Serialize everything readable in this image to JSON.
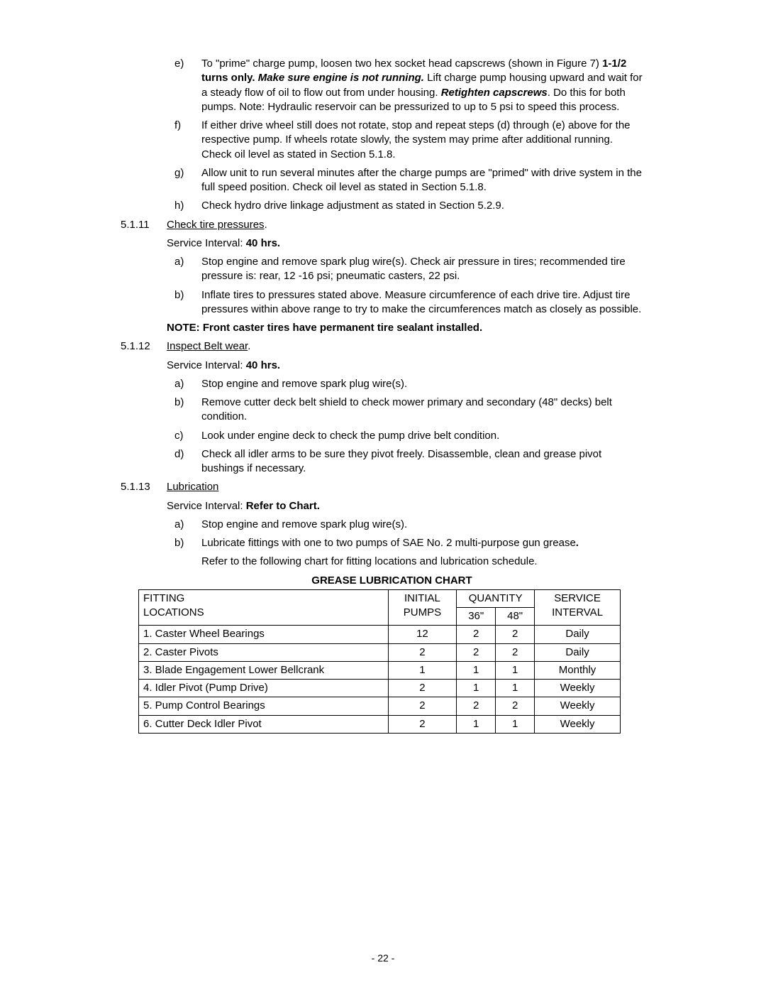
{
  "items_e": {
    "letter": "e)",
    "pre": "To \"prime\" charge pump, loosen two hex socket head capscrews (shown in Figure 7) ",
    "bold1": "1-1/2 turns only.  ",
    "bolditalic1": "Make sure engine is not running.",
    "mid1": "  Lift charge pump housing upward and wait for a steady flow of oil to flow out from under housing.  ",
    "bolditalic2": "Retighten capscrews",
    "tail": ".  Do this for both pumps.  Note:  Hydraulic reservoir can be pressurized to up to 5 psi to speed this process."
  },
  "items_f": {
    "letter": "f)",
    "text": "If either drive wheel still does not rotate, stop and repeat steps (d) through (e) above for the respective pump.  If wheels rotate slowly, the system may prime after additional running. Check oil level as stated in Section 5.1.8."
  },
  "items_g": {
    "letter": "g)",
    "text": "Allow unit to run several minutes after the charge pumps are \"primed\" with drive system in the full speed position.  Check oil level as stated in Section 5.1.8."
  },
  "items_h": {
    "letter": "h)",
    "text": "Check hydro drive linkage adjustment as stated in Section 5.2.9."
  },
  "s5111": {
    "num": "5.1.11",
    "title": "Check tire pressures",
    "interval_label": "Service Interval:  ",
    "interval_val": "40 hrs.",
    "a": {
      "letter": "a)",
      "text": "Stop engine and remove spark plug wire(s).  Check air pressure in tires; recommended tire pressure is:  rear, 12 -16 psi; pneumatic casters, 22 psi."
    },
    "b": {
      "letter": "b)",
      "text": "Inflate tires to pressures stated above.  Measure circumference of each drive tire.  Adjust tire pressures within above range to try to make the circumferences match as closely as possible."
    },
    "note": "NOTE:  Front caster tires have permanent tire sealant installed."
  },
  "s5112": {
    "num": "5.1.12",
    "title": "Inspect Belt wear",
    "interval_label": "Service Interval:  ",
    "interval_val": "40 hrs.",
    "a": {
      "letter": "a)",
      "text": "Stop engine and remove spark plug wire(s)."
    },
    "b": {
      "letter": "b)",
      "text": "Remove cutter deck belt shield to check mower primary and secondary (48\" decks) belt condition."
    },
    "c": {
      "letter": "c)",
      "text": "Look under engine deck to check the pump drive belt condition."
    },
    "d": {
      "letter": "d)",
      "text": "Check all idler arms to be sure they pivot freely.  Disassemble, clean and grease pivot bushings if necessary."
    }
  },
  "s5113": {
    "num": "5.1.13",
    "title": "Lubrication",
    "interval_label": "Service Interval: ",
    "interval_val": "Refer to Chart.",
    "a": {
      "letter": "a)",
      "text": "Stop engine and remove spark plug wire(s)."
    },
    "b": {
      "letter": "b)",
      "pre": "Lubricate fittings with one to two pumps of SAE No. 2 multi-purpose gun grease",
      "bold_period": "."
    },
    "refer": "Refer to the following chart for fitting locations and lubrication schedule."
  },
  "chart": {
    "title": "GREASE LUBRICATION CHART",
    "h1a": "FITTING",
    "h1b": "LOCATIONS",
    "h2a": "INITIAL",
    "h2b": "PUMPS",
    "h3": "QUANTITY",
    "h3a": "36\"",
    "h3b": "48\"",
    "h4a": "SERVICE",
    "h4b": "INTERVAL",
    "rows": [
      {
        "loc": "1. Caster Wheel Bearings",
        "pumps": "12",
        "q36": "2",
        "q48": "2",
        "svc": "Daily"
      },
      {
        "loc": "2. Caster Pivots",
        "pumps": "2",
        "q36": "2",
        "q48": "2",
        "svc": "Daily"
      },
      {
        "loc": "3. Blade Engagement Lower Bellcrank",
        "pumps": "1",
        "q36": "1",
        "q48": "1",
        "svc": "Monthly"
      },
      {
        "loc": "4. Idler Pivot (Pump Drive)",
        "pumps": "2",
        "q36": "1",
        "q48": "1",
        "svc": "Weekly"
      },
      {
        "loc": "5. Pump Control Bearings",
        "pumps": "2",
        "q36": "2",
        "q48": "2",
        "svc": "Weekly"
      },
      {
        "loc": "6. Cutter Deck Idler Pivot",
        "pumps": "2",
        "q36": "1",
        "q48": "1",
        "svc": "Weekly"
      }
    ]
  },
  "page_number": "- 22 -"
}
